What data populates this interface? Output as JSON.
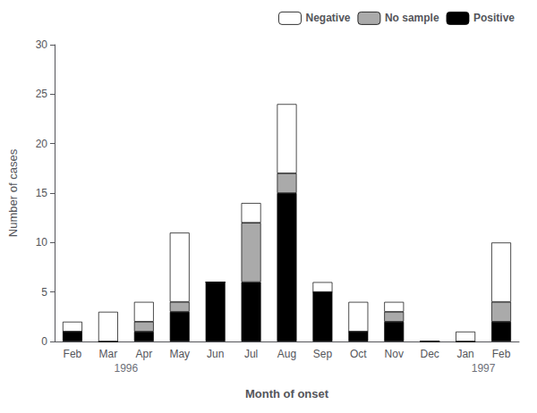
{
  "chart_data": {
    "type": "bar",
    "stacked": true,
    "categories": [
      "Feb",
      "Mar",
      "Apr",
      "May",
      "Jun",
      "Jul",
      "Aug",
      "Sep",
      "Oct",
      "Nov",
      "Dec",
      "Jan",
      "Feb"
    ],
    "series": [
      {
        "name": "Positive",
        "color": "#000000",
        "values": [
          1,
          0,
          1,
          3,
          6,
          6,
          15,
          5,
          1,
          2,
          0,
          0,
          2
        ]
      },
      {
        "name": "No sample",
        "color": "#aaaaaa",
        "values": [
          0,
          0,
          1,
          1,
          0,
          6,
          2,
          0,
          0,
          1,
          0,
          0,
          2
        ]
      },
      {
        "name": "Negative",
        "color": "#ffffff",
        "values": [
          1,
          3,
          2,
          7,
          0,
          2,
          7,
          1,
          3,
          1,
          0,
          1,
          6
        ]
      }
    ],
    "legend_order": [
      "Negative",
      "No sample",
      "Positive"
    ],
    "ylim": [
      0,
      30
    ],
    "yticks": [
      0,
      5,
      10,
      15,
      20,
      25,
      30
    ],
    "ylabel": "Number of cases",
    "xlabel": "Month of onset",
    "annotations": [
      {
        "text": "1996",
        "x": 1.5
      },
      {
        "text": "1997",
        "x": 11.5
      }
    ],
    "legend": "upper right",
    "grid": false
  }
}
